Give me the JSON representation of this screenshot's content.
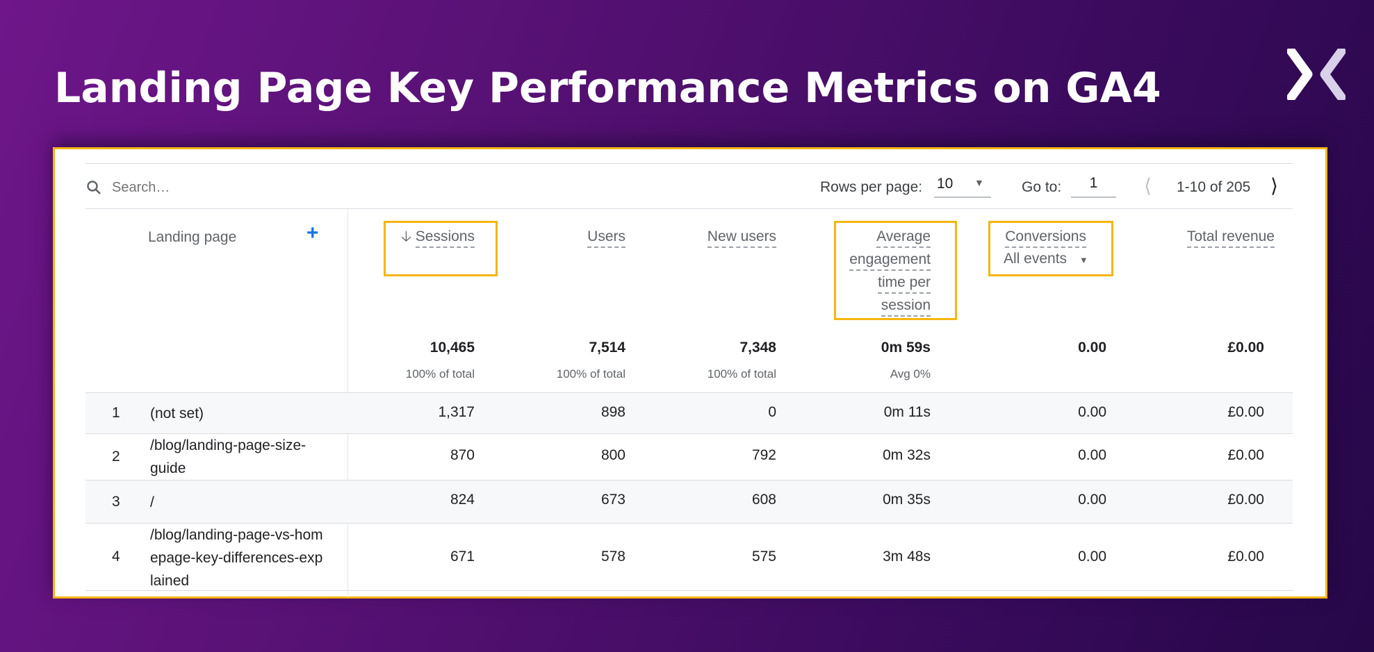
{
  "title": "Landing Page Key Performance Metrics on GA4",
  "logo": "X",
  "toolbar": {
    "search_placeholder": "Search…",
    "rows_per_page_label": "Rows per page:",
    "rows_per_page_value": "10",
    "goto_label": "Go to:",
    "goto_value": "1",
    "range": "1-10 of 205"
  },
  "headers": {
    "dimension": "Landing page",
    "sessions": "Sessions",
    "users": "Users",
    "new_users": "New users",
    "avg_line1": "Average",
    "avg_line2": "engagement",
    "avg_line3": "time per",
    "avg_line4": "session",
    "conversions": "Conversions",
    "conversions_filter": "All events",
    "revenue": "Total revenue"
  },
  "totals": {
    "sessions": "10,465",
    "sessions_sub": "100% of total",
    "users": "7,514",
    "users_sub": "100% of total",
    "new_users": "7,348",
    "new_users_sub": "100% of total",
    "avg": "0m 59s",
    "avg_sub": "Avg 0%",
    "conversions": "0.00",
    "revenue": "£0.00"
  },
  "rows": [
    {
      "n": "1",
      "page": "(not set)",
      "sessions": "1,317",
      "users": "898",
      "new_users": "0",
      "avg": "0m 11s",
      "conversions": "0.00",
      "revenue": "£0.00"
    },
    {
      "n": "2",
      "page": "/blog/landing-page-size-guide",
      "sessions": "870",
      "users": "800",
      "new_users": "792",
      "avg": "0m 32s",
      "conversions": "0.00",
      "revenue": "£0.00"
    },
    {
      "n": "3",
      "page": "/",
      "sessions": "824",
      "users": "673",
      "new_users": "608",
      "avg": "0m 35s",
      "conversions": "0.00",
      "revenue": "£0.00"
    },
    {
      "n": "4",
      "page": "/blog/landing-page-vs-homepage-key-differences-explained",
      "sessions": "671",
      "users": "578",
      "new_users": "575",
      "avg": "3m 48s",
      "conversions": "0.00",
      "revenue": "£0.00"
    }
  ],
  "colors": {
    "highlight": "#f5b50f",
    "accent": "#1a73e8"
  }
}
